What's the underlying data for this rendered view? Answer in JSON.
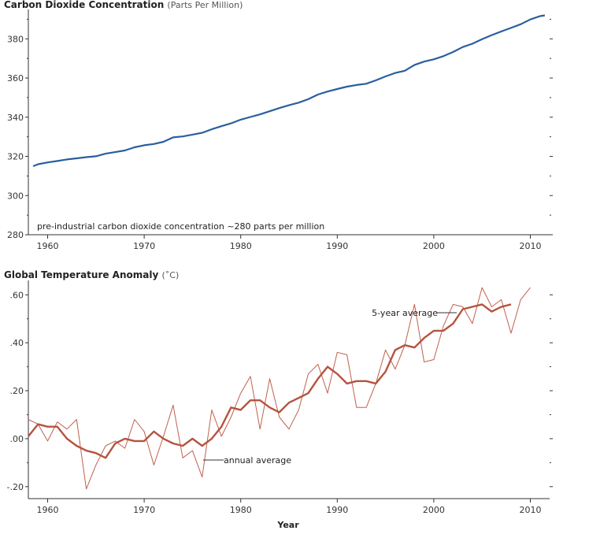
{
  "chart_data": [
    {
      "type": "line",
      "title": "Carbon Dioxide Concentration",
      "subtitle": "(Parts Per Million)",
      "xlim": [
        1958,
        2012
      ],
      "ylim": [
        280,
        395
      ],
      "x_ticks": [
        1960,
        1970,
        1980,
        1990,
        2000,
        2010
      ],
      "y_ticks": [
        280,
        300,
        320,
        340,
        360,
        380
      ],
      "annotation": "pre-industrial carbon dioxide concentration ~280 parts per million",
      "series": [
        {
          "color": "#2a5f9e",
          "x": [
            1958.5,
            1959,
            1960,
            1961,
            1962,
            1963,
            1964,
            1965,
            1966,
            1967,
            1968,
            1969,
            1970,
            1971,
            1972,
            1973,
            1974,
            1975,
            1976,
            1977,
            1978,
            1979,
            1980,
            1981,
            1982,
            1983,
            1984,
            1985,
            1986,
            1987,
            1988,
            1989,
            1990,
            1991,
            1992,
            1993,
            1994,
            1995,
            1996,
            1997,
            1998,
            1999,
            2000,
            2001,
            2002,
            2003,
            2004,
            2005,
            2006,
            2007,
            2008,
            2009,
            2010,
            2011,
            2011.5
          ],
          "y": [
            315.0,
            315.97,
            316.91,
            317.64,
            318.45,
            318.99,
            319.62,
            320.04,
            321.38,
            322.16,
            323.04,
            324.62,
            325.68,
            326.32,
            327.45,
            329.68,
            330.18,
            331.11,
            332.04,
            333.83,
            335.4,
            336.84,
            338.75,
            340.11,
            341.45,
            343.05,
            344.65,
            346.12,
            347.42,
            349.19,
            351.57,
            353.12,
            354.39,
            355.61,
            356.45,
            357.1,
            358.83,
            360.82,
            362.61,
            363.73,
            366.7,
            368.38,
            369.55,
            371.14,
            373.28,
            375.8,
            377.52,
            379.8,
            381.9,
            383.79,
            385.6,
            387.43,
            389.9,
            391.6,
            392.0
          ]
        }
      ]
    },
    {
      "type": "line",
      "title": "Global Temperature Anomaly",
      "subtitle": "(˚C)",
      "xlabel": "Year",
      "xlim": [
        1958,
        2012
      ],
      "ylim": [
        -0.25,
        0.66
      ],
      "x_ticks": [
        1960,
        1970,
        1980,
        1990,
        2000,
        2010
      ],
      "y_ticks": [
        0.6,
        0.4,
        0.2,
        0.0,
        -0.2
      ],
      "y_tick_labels": [
        ".60",
        ".40",
        ".20",
        ".00",
        "-.20"
      ],
      "series": [
        {
          "name": "annual average",
          "color": "#c0604d",
          "x": [
            1958,
            1959,
            1960,
            1961,
            1962,
            1963,
            1964,
            1965,
            1966,
            1967,
            1968,
            1969,
            1970,
            1971,
            1972,
            1973,
            1974,
            1975,
            1976,
            1977,
            1978,
            1979,
            1980,
            1981,
            1982,
            1983,
            1984,
            1985,
            1986,
            1987,
            1988,
            1989,
            1990,
            1991,
            1992,
            1993,
            1994,
            1995,
            1996,
            1997,
            1998,
            1999,
            2000,
            2001,
            2002,
            2003,
            2004,
            2005,
            2006,
            2007,
            2008,
            2009,
            2010
          ],
          "y": [
            0.08,
            0.06,
            -0.01,
            0.07,
            0.04,
            0.08,
            -0.21,
            -0.11,
            -0.03,
            -0.01,
            -0.04,
            0.08,
            0.03,
            -0.11,
            0.01,
            0.14,
            -0.08,
            -0.05,
            -0.16,
            0.12,
            0.01,
            0.09,
            0.19,
            0.26,
            0.04,
            0.25,
            0.09,
            0.04,
            0.12,
            0.27,
            0.31,
            0.19,
            0.36,
            0.35,
            0.13,
            0.13,
            0.23,
            0.37,
            0.29,
            0.39,
            0.56,
            0.32,
            0.33,
            0.47,
            0.56,
            0.55,
            0.48,
            0.63,
            0.55,
            0.58,
            0.44,
            0.58,
            0.63
          ]
        },
        {
          "name": "5-year average",
          "color": "#b5533f",
          "x": [
            1958,
            1959,
            1960,
            1961,
            1962,
            1963,
            1964,
            1965,
            1966,
            1967,
            1968,
            1969,
            1970,
            1971,
            1972,
            1973,
            1974,
            1975,
            1976,
            1977,
            1978,
            1979,
            1980,
            1981,
            1982,
            1983,
            1984,
            1985,
            1986,
            1987,
            1988,
            1989,
            1990,
            1991,
            1992,
            1993,
            1994,
            1995,
            1996,
            1997,
            1998,
            1999,
            2000,
            2001,
            2002,
            2003,
            2004,
            2005,
            2006,
            2007,
            2008
          ],
          "y": [
            0.01,
            0.06,
            0.05,
            0.05,
            0.0,
            -0.03,
            -0.05,
            -0.06,
            -0.08,
            -0.02,
            0.0,
            -0.01,
            -0.01,
            0.03,
            0.0,
            -0.02,
            -0.03,
            0.0,
            -0.03,
            0.0,
            0.05,
            0.13,
            0.12,
            0.16,
            0.16,
            0.13,
            0.11,
            0.15,
            0.17,
            0.19,
            0.25,
            0.3,
            0.27,
            0.23,
            0.24,
            0.24,
            0.23,
            0.28,
            0.37,
            0.39,
            0.38,
            0.42,
            0.45,
            0.45,
            0.48,
            0.54,
            0.55,
            0.56,
            0.53,
            0.55,
            0.56
          ]
        }
      ]
    }
  ]
}
